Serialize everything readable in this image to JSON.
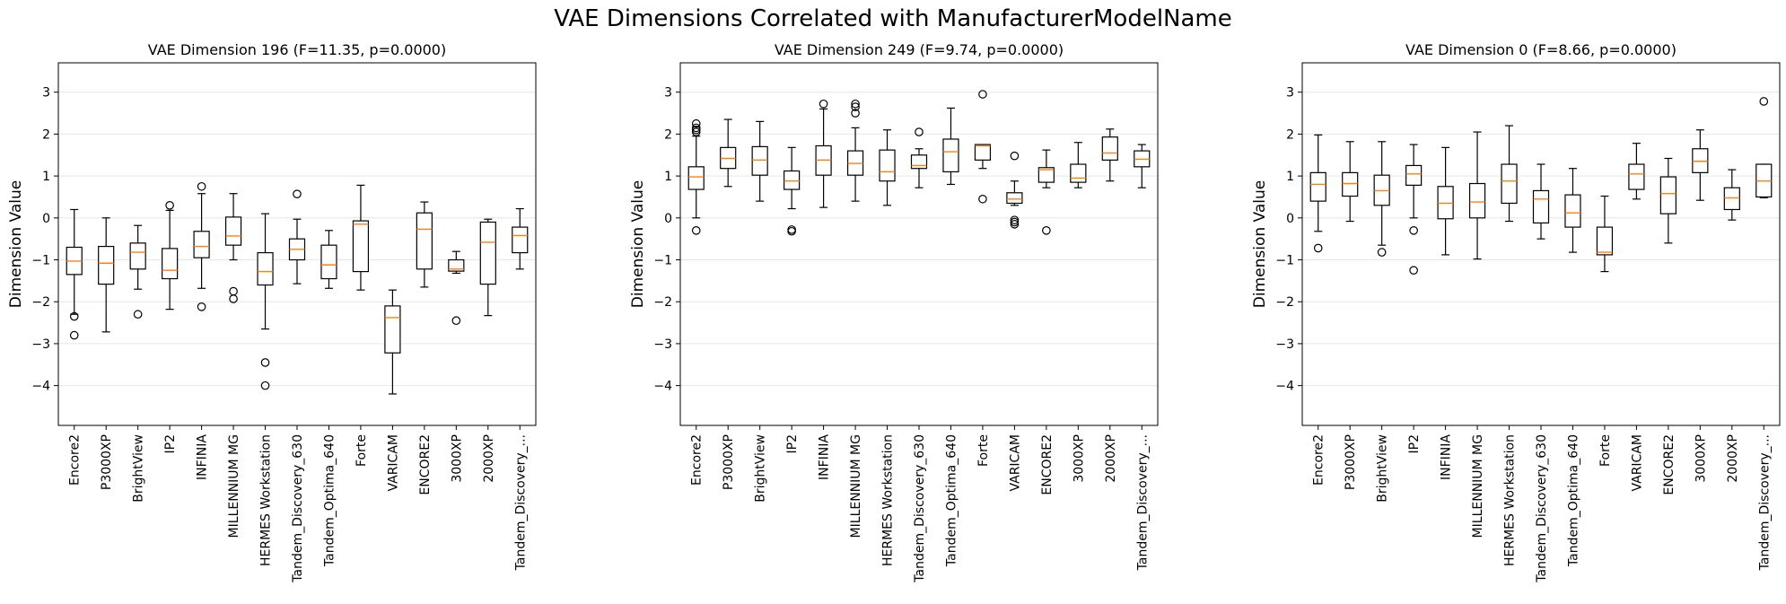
{
  "figure_title": "VAE Dimensions Correlated with ManufacturerModelName",
  "chart_data": [
    {
      "type": "box",
      "title": "VAE Dimension 196 (F=11.35, p=0.0000)",
      "ylabel": "Dimension Value",
      "ylim": [
        -4.95,
        3.7
      ],
      "yticks": [
        -4,
        -3,
        -2,
        -1,
        0,
        1,
        2,
        3
      ],
      "grid": "y",
      "categories": [
        "Encore2",
        "P3000XP",
        "BrightView",
        "IP2",
        "INFINIA",
        "MILLENNIUM MG",
        "HERMES Workstation",
        "Tandem_Discovery_630",
        "Tandem_Optima_640",
        "Forte",
        "VARICAM",
        "ENCORE2",
        "3000XP",
        "2000XP",
        "Tandem_Discovery_..."
      ],
      "boxes": [
        {
          "low": -2.3,
          "q1": -1.35,
          "median": -1.03,
          "q3": -0.7,
          "high": 0.2,
          "fliers": [
            -2.35,
            -2.8
          ]
        },
        {
          "low": -2.72,
          "q1": -1.58,
          "median": -1.08,
          "q3": -0.68,
          "high": 0.0,
          "fliers": []
        },
        {
          "low": -1.7,
          "q1": -1.22,
          "median": -0.82,
          "q3": -0.6,
          "high": -0.18,
          "fliers": [
            -2.3
          ]
        },
        {
          "low": -2.18,
          "q1": -1.45,
          "median": -1.25,
          "q3": -0.73,
          "high": 0.18,
          "fliers": [
            0.3
          ]
        },
        {
          "low": -1.68,
          "q1": -0.95,
          "median": -0.68,
          "q3": -0.32,
          "high": 0.58,
          "fliers": [
            0.75,
            -2.12
          ]
        },
        {
          "low": -1.0,
          "q1": -0.65,
          "median": -0.43,
          "q3": 0.02,
          "high": 0.58,
          "fliers": [
            -1.75,
            -1.93
          ]
        },
        {
          "low": -2.65,
          "q1": -1.6,
          "median": -1.28,
          "q3": -0.83,
          "high": 0.1,
          "fliers": [
            -3.45,
            -4.0
          ]
        },
        {
          "low": -1.57,
          "q1": -1.0,
          "median": -0.75,
          "q3": -0.5,
          "high": -0.03,
          "fliers": [
            0.57
          ]
        },
        {
          "low": -1.68,
          "q1": -1.45,
          "median": -1.12,
          "q3": -0.65,
          "high": -0.3,
          "fliers": []
        },
        {
          "low": -1.72,
          "q1": -1.28,
          "median": -0.15,
          "q3": -0.07,
          "high": 0.78,
          "fliers": []
        },
        {
          "low": -4.2,
          "q1": -3.22,
          "median": -2.38,
          "q3": -2.1,
          "high": -1.72,
          "fliers": []
        },
        {
          "low": -1.65,
          "q1": -1.22,
          "median": -0.27,
          "q3": 0.12,
          "high": 0.38,
          "fliers": []
        },
        {
          "low": -1.32,
          "q1": -1.27,
          "median": -1.22,
          "q3": -1.0,
          "high": -0.8,
          "fliers": [
            -2.45
          ]
        },
        {
          "low": -2.33,
          "q1": -1.58,
          "median": -0.58,
          "q3": -0.1,
          "high": -0.03,
          "fliers": []
        },
        {
          "low": -1.22,
          "q1": -0.83,
          "median": -0.42,
          "q3": -0.22,
          "high": 0.22,
          "fliers": []
        }
      ]
    },
    {
      "type": "box",
      "title": "VAE Dimension 249 (F=9.74, p=0.0000)",
      "ylabel": "Dimension Value",
      "ylim": [
        -4.95,
        3.7
      ],
      "yticks": [
        -4,
        -3,
        -2,
        -1,
        0,
        1,
        2,
        3
      ],
      "grid": "y",
      "categories": [
        "Encore2",
        "P3000XP",
        "BrightView",
        "IP2",
        "INFINIA",
        "MILLENNIUM MG",
        "HERMES Workstation",
        "Tandem_Discovery_630",
        "Tandem_Optima_640",
        "Forte",
        "VARICAM",
        "ENCORE2",
        "3000XP",
        "2000XP",
        "Tandem_Discovery_..."
      ],
      "boxes": [
        {
          "low": 0.0,
          "q1": 0.68,
          "median": 0.98,
          "q3": 1.22,
          "high": 1.95,
          "fliers": [
            2.05,
            2.1,
            2.15,
            2.25,
            -0.3
          ]
        },
        {
          "low": 0.75,
          "q1": 1.18,
          "median": 1.42,
          "q3": 1.68,
          "high": 2.35,
          "fliers": []
        },
        {
          "low": 0.4,
          "q1": 1.02,
          "median": 1.38,
          "q3": 1.7,
          "high": 2.3,
          "fliers": []
        },
        {
          "low": 0.22,
          "q1": 0.68,
          "median": 0.88,
          "q3": 1.12,
          "high": 1.68,
          "fliers": [
            -0.28,
            -0.32
          ]
        },
        {
          "low": 0.25,
          "q1": 1.02,
          "median": 1.38,
          "q3": 1.72,
          "high": 2.6,
          "fliers": [
            2.72
          ]
        },
        {
          "low": 0.4,
          "q1": 1.02,
          "median": 1.3,
          "q3": 1.6,
          "high": 2.15,
          "fliers": [
            2.5,
            2.65,
            2.72
          ]
        },
        {
          "low": 0.3,
          "q1": 0.88,
          "median": 1.1,
          "q3": 1.62,
          "high": 2.1,
          "fliers": []
        },
        {
          "low": 0.72,
          "q1": 1.18,
          "median": 1.25,
          "q3": 1.5,
          "high": 1.65,
          "fliers": [
            2.05
          ]
        },
        {
          "low": 0.8,
          "q1": 1.1,
          "median": 1.58,
          "q3": 1.88,
          "high": 2.62,
          "fliers": []
        },
        {
          "low": 1.18,
          "q1": 1.38,
          "median": 1.72,
          "q3": 1.75,
          "high": 1.75,
          "fliers": [
            2.95,
            0.45
          ]
        },
        {
          "low": 0.3,
          "q1": 0.35,
          "median": 0.45,
          "q3": 0.6,
          "high": 0.88,
          "fliers": [
            1.48,
            -0.05,
            -0.1,
            -0.15
          ]
        },
        {
          "low": 0.72,
          "q1": 0.85,
          "median": 1.15,
          "q3": 1.2,
          "high": 1.62,
          "fliers": [
            -0.3
          ]
        },
        {
          "low": 0.72,
          "q1": 0.85,
          "median": 0.95,
          "q3": 1.28,
          "high": 1.8,
          "fliers": []
        },
        {
          "low": 0.88,
          "q1": 1.38,
          "median": 1.55,
          "q3": 1.93,
          "high": 2.12,
          "fliers": []
        },
        {
          "low": 0.72,
          "q1": 1.22,
          "median": 1.4,
          "q3": 1.6,
          "high": 1.75,
          "fliers": []
        }
      ]
    },
    {
      "type": "box",
      "title": "VAE Dimension 0 (F=8.66, p=0.0000)",
      "ylabel": "Dimension Value",
      "ylim": [
        -4.95,
        3.7
      ],
      "yticks": [
        -4,
        -3,
        -2,
        -1,
        0,
        1,
        2,
        3
      ],
      "grid": "y",
      "categories": [
        "Encore2",
        "P3000XP",
        "BrightView",
        "IP2",
        "INFINIA",
        "MILLENNIUM MG",
        "HERMES Workstation",
        "Tandem_Discovery_630",
        "Tandem_Optima_640",
        "Forte",
        "VARICAM",
        "ENCORE2",
        "3000XP",
        "2000XP",
        "Tandem_Discovery_..."
      ],
      "boxes": [
        {
          "low": -0.32,
          "q1": 0.4,
          "median": 0.8,
          "q3": 1.08,
          "high": 1.98,
          "fliers": [
            -0.72
          ]
        },
        {
          "low": -0.08,
          "q1": 0.52,
          "median": 0.82,
          "q3": 1.08,
          "high": 1.82,
          "fliers": []
        },
        {
          "low": -0.65,
          "q1": 0.3,
          "median": 0.65,
          "q3": 1.02,
          "high": 1.82,
          "fliers": [
            -0.82
          ]
        },
        {
          "low": 0.0,
          "q1": 0.78,
          "median": 1.05,
          "q3": 1.25,
          "high": 1.75,
          "fliers": [
            -0.3,
            -1.25
          ]
        },
        {
          "low": -0.88,
          "q1": -0.02,
          "median": 0.35,
          "q3": 0.75,
          "high": 1.68,
          "fliers": []
        },
        {
          "low": -0.98,
          "q1": 0.0,
          "median": 0.38,
          "q3": 0.82,
          "high": 2.05,
          "fliers": []
        },
        {
          "low": -0.08,
          "q1": 0.35,
          "median": 0.88,
          "q3": 1.28,
          "high": 2.2,
          "fliers": []
        },
        {
          "low": -0.5,
          "q1": -0.12,
          "median": 0.45,
          "q3": 0.65,
          "high": 1.28,
          "fliers": []
        },
        {
          "low": -0.82,
          "q1": -0.22,
          "median": 0.12,
          "q3": 0.55,
          "high": 1.18,
          "fliers": []
        },
        {
          "low": -1.28,
          "q1": -0.88,
          "median": -0.82,
          "q3": -0.22,
          "high": 0.52,
          "fliers": []
        },
        {
          "low": 0.45,
          "q1": 0.68,
          "median": 1.05,
          "q3": 1.28,
          "high": 1.78,
          "fliers": []
        },
        {
          "low": -0.6,
          "q1": 0.1,
          "median": 0.58,
          "q3": 0.98,
          "high": 1.42,
          "fliers": []
        },
        {
          "low": 0.42,
          "q1": 1.08,
          "median": 1.35,
          "q3": 1.65,
          "high": 2.1,
          "fliers": []
        },
        {
          "low": -0.05,
          "q1": 0.2,
          "median": 0.48,
          "q3": 0.72,
          "high": 1.15,
          "fliers": []
        },
        {
          "low": 0.48,
          "q1": 0.5,
          "median": 0.88,
          "q3": 1.28,
          "high": 1.28,
          "fliers": [
            2.78
          ]
        }
      ]
    }
  ]
}
